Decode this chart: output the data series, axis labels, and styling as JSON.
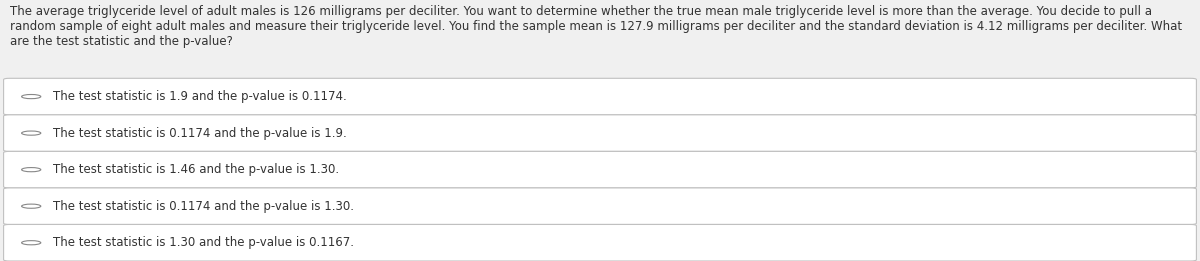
{
  "question_text": "The average triglyceride level of adult males is 126 milligrams per deciliter. You want to determine whether the true mean male triglyceride level is more than the average. You decide to pull a random sample of eight adult males and measure their triglyceride level. You find the sample mean is 127.9 milligrams per deciliter and the standard deviation is 4.12 milligrams per deciliter. What are the test statistic and the p-value?",
  "options": [
    "The test statistic is 1.9 and the p-value is 0.1174.",
    "The test statistic is 0.1174 and the p-value is 1.9.",
    "The test statistic is 1.46 and the p-value is 1.30.",
    "The test statistic is 0.1174 and the p-value is 1.30.",
    "The test statistic is 1.30 and the p-value is 0.1167."
  ],
  "bg_color": "#f0f0f0",
  "box_color": "#ffffff",
  "border_color": "#c0c0c0",
  "text_color": "#333333",
  "question_fontsize": 8.5,
  "option_fontsize": 8.5
}
